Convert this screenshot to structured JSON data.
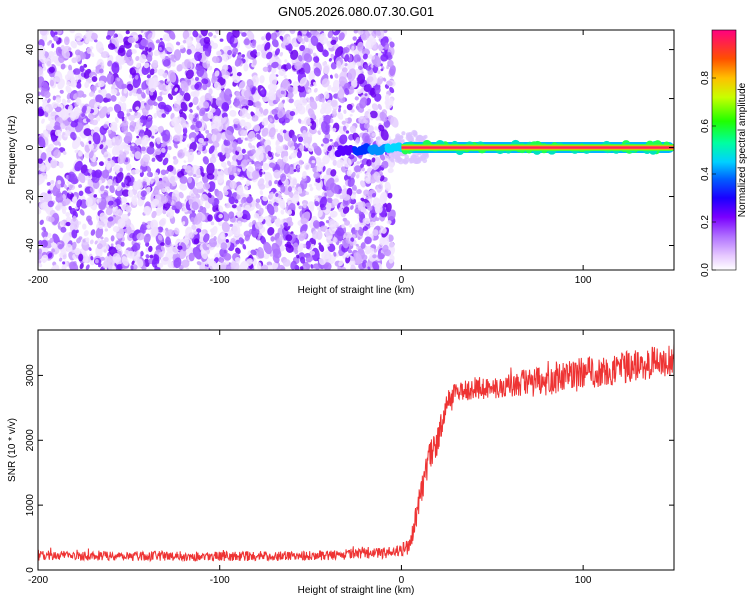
{
  "title": "GN05.2026.080.07.30.G01",
  "chart_data": [
    {
      "type": "heatmap",
      "title": "GN05.2026.080.07.30.G01",
      "xlabel": "Height of straight line (km)",
      "ylabel": "Frequency (Hz)",
      "xlim": [
        -200,
        150
      ],
      "ylim": [
        -50,
        48
      ],
      "x_ticks": [
        "-200",
        "-100",
        "0",
        "100"
      ],
      "y_ticks": [
        "-40",
        "-20",
        "0",
        "20",
        "40"
      ],
      "colorbar": {
        "label": "Normalized spectral amplitude",
        "range": [
          0,
          1
        ],
        "ticks": [
          "0.0",
          "0.2",
          "0.4",
          "0.6",
          "0.8"
        ],
        "colors": [
          "#ffffff",
          "#d08bff",
          "#8000ff",
          "#0000ff",
          "#00c8ff",
          "#00ff60",
          "#c8ff00",
          "#ffc000",
          "#ff4000",
          "#ff0080"
        ]
      },
      "description_regions": [
        {
          "x_range": [
            -200,
            -5
          ],
          "freq_range": [
            -50,
            48
          ],
          "amplitude": "low (noise)"
        },
        {
          "x_range": [
            -35,
            0
          ],
          "freq_range": [
            -2,
            2
          ],
          "amplitude": "rising"
        },
        {
          "x_range": [
            0,
            150
          ],
          "freq_range": [
            -1,
            1
          ],
          "amplitude": "peak ~1.0"
        }
      ]
    },
    {
      "type": "line",
      "xlabel": "Height of straight line (km)",
      "ylabel": "SNR (10 * v/v)",
      "xlim": [
        -200,
        150
      ],
      "ylim": [
        0,
        3700
      ],
      "x_ticks": [
        "-200",
        "-100",
        "0",
        "100"
      ],
      "y_ticks": [
        "0",
        "1000",
        "2000",
        "3000"
      ],
      "series": [
        {
          "name": "SNR",
          "color": "#ee3333",
          "x": [
            -200,
            -150,
            -100,
            -50,
            -10,
            0,
            5,
            10,
            15,
            20,
            25,
            30,
            40,
            50,
            60,
            70,
            80,
            90,
            100,
            110,
            120,
            130,
            140,
            150
          ],
          "y": [
            220,
            220,
            210,
            220,
            260,
            300,
            400,
            1100,
            1700,
            2000,
            2600,
            2750,
            2800,
            2800,
            2850,
            2900,
            2900,
            3000,
            3050,
            3050,
            3100,
            3150,
            3200,
            3250
          ],
          "noise_amplitude": [
            150,
            150,
            150,
            150,
            170,
            200,
            300,
            400,
            450,
            450,
            300,
            300,
            350,
            350,
            400,
            450,
            450,
            450,
            500,
            500,
            500,
            500,
            500,
            500
          ]
        }
      ]
    }
  ]
}
